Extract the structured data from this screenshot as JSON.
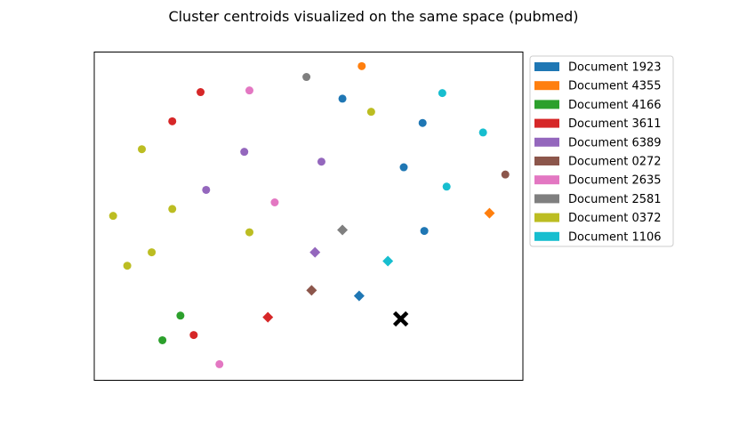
{
  "chart_data": {
    "type": "scatter",
    "title": "Cluster centroids visualized on the same space (pubmed)",
    "xlabel": "",
    "ylabel": "",
    "xlim": [
      0,
      100
    ],
    "ylim": [
      0,
      100
    ],
    "grid": false,
    "legend_position": "outside-top-right",
    "axes_ticks_visible": false,
    "series": [
      {
        "name": "Document 1923",
        "color": "#1f77b4",
        "points": [
          [
            57.9,
            85.8
          ],
          [
            76.6,
            78.4
          ],
          [
            72.2,
            64.9
          ],
          [
            77.0,
            45.5
          ]
        ],
        "centroid": [
          61.8,
          25.7
        ]
      },
      {
        "name": "Document 4355",
        "color": "#ff7f0e",
        "points": [
          [
            62.4,
            95.7
          ]
        ],
        "centroid": [
          92.2,
          50.9
        ]
      },
      {
        "name": "Document 4166",
        "color": "#2ca02c",
        "points": [
          [
            20.1,
            19.7
          ],
          [
            15.9,
            12.2
          ]
        ],
        "centroid": null
      },
      {
        "name": "Document 3611",
        "color": "#d62728",
        "points": [
          [
            24.8,
            87.8
          ],
          [
            18.2,
            78.9
          ],
          [
            23.2,
            13.8
          ]
        ],
        "centroid": [
          40.5,
          19.2
        ]
      },
      {
        "name": "Document 6389",
        "color": "#9467bd",
        "points": [
          [
            35.0,
            69.6
          ],
          [
            53.0,
            66.6
          ],
          [
            26.1,
            58.0
          ]
        ],
        "centroid": [
          51.5,
          39.0
        ]
      },
      {
        "name": "Document 0272",
        "color": "#8c564b",
        "points": [
          [
            95.9,
            62.7
          ]
        ],
        "centroid": [
          50.7,
          27.4
        ]
      },
      {
        "name": "Document 2635",
        "color": "#e377c2",
        "points": [
          [
            36.2,
            88.3
          ],
          [
            42.1,
            54.2
          ],
          [
            29.2,
            4.9
          ]
        ],
        "centroid": null
      },
      {
        "name": "Document 2581",
        "color": "#7f7f7f",
        "points": [
          [
            49.5,
            92.4
          ]
        ],
        "centroid": [
          57.9,
          45.8
        ]
      },
      {
        "name": "Document 0372",
        "color": "#bcbd22",
        "points": [
          [
            64.6,
            81.8
          ],
          [
            11.1,
            70.4
          ],
          [
            18.2,
            52.2
          ],
          [
            4.4,
            50.1
          ],
          [
            36.2,
            45.1
          ],
          [
            13.4,
            39.0
          ],
          [
            7.7,
            34.9
          ]
        ],
        "centroid": null
      },
      {
        "name": "Document 1106",
        "color": "#17becf",
        "points": [
          [
            81.2,
            87.5
          ],
          [
            90.7,
            75.5
          ],
          [
            82.2,
            59.0
          ]
        ],
        "centroid": [
          68.5,
          36.3
        ]
      }
    ],
    "query_point": {
      "marker": "X",
      "color": "#000000",
      "x": 71.5,
      "y": 18.7
    }
  }
}
